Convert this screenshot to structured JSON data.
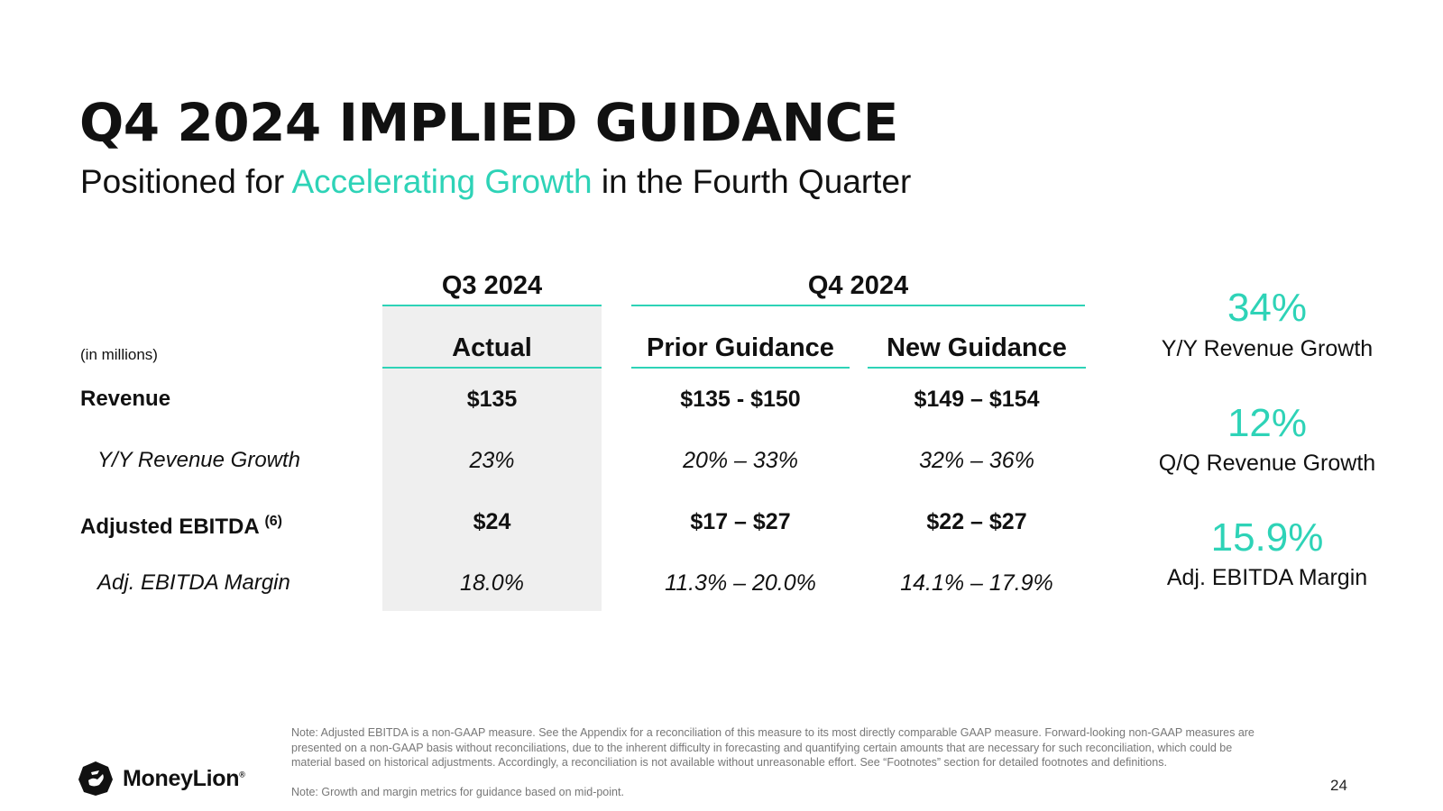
{
  "slide": {
    "title": "Q4 2024 IMPLIED GUIDANCE",
    "subtitle_pre": "Positioned for ",
    "subtitle_accent": "Accelerating Growth",
    "subtitle_post": " in the Fourth Quarter",
    "page_number": "24"
  },
  "table": {
    "group_q3": "Q3 2024",
    "group_q4": "Q4 2024",
    "units": "(in millions)",
    "col_actual": "Actual",
    "col_prior": "Prior Guidance",
    "col_new": "New Guidance",
    "rows": [
      {
        "label": "Revenue",
        "actual": "$135",
        "prior": "$135 - $150",
        "new": "$149 – $154"
      },
      {
        "label": "Y/Y Revenue Growth",
        "actual": "23%",
        "prior": "20% – 33%",
        "new": "32% – 36%"
      },
      {
        "label": "Adjusted EBITDA",
        "label_sup": "(6)",
        "actual": "$24",
        "prior": "$17 – $27",
        "new": "$22 – $27"
      },
      {
        "label": "Adj. EBITDA Margin",
        "actual": "18.0%",
        "prior": "11.3% – 20.0%",
        "new": "14.1% – 17.9%"
      }
    ]
  },
  "kpis": [
    {
      "value": "34%",
      "label": "Y/Y Revenue Growth"
    },
    {
      "value": "12%",
      "label": "Q/Q Revenue Growth"
    },
    {
      "value": "15.9%",
      "label": "Adj. EBITDA Margin"
    }
  ],
  "notes": {
    "note1": "Note: Adjusted EBITDA is a non-GAAP measure. See the Appendix for a reconciliation of this measure to its most directly comparable GAAP measure. Forward-looking non-GAAP measures are presented on a non-GAAP basis without reconciliations, due to the inherent difficulty in forecasting and quantifying certain amounts that are necessary for such reconciliation, which could be material based on historical adjustments. Accordingly, a reconciliation is not available without unreasonable effort. See “Footnotes” section for detailed footnotes and definitions.",
    "note2": "Note: Growth and margin metrics for guidance based on mid-point."
  },
  "brand": {
    "name": "MoneyLion",
    "reg": "®",
    "accent_color": "#2ed3b7",
    "shade_color": "#efefef"
  }
}
